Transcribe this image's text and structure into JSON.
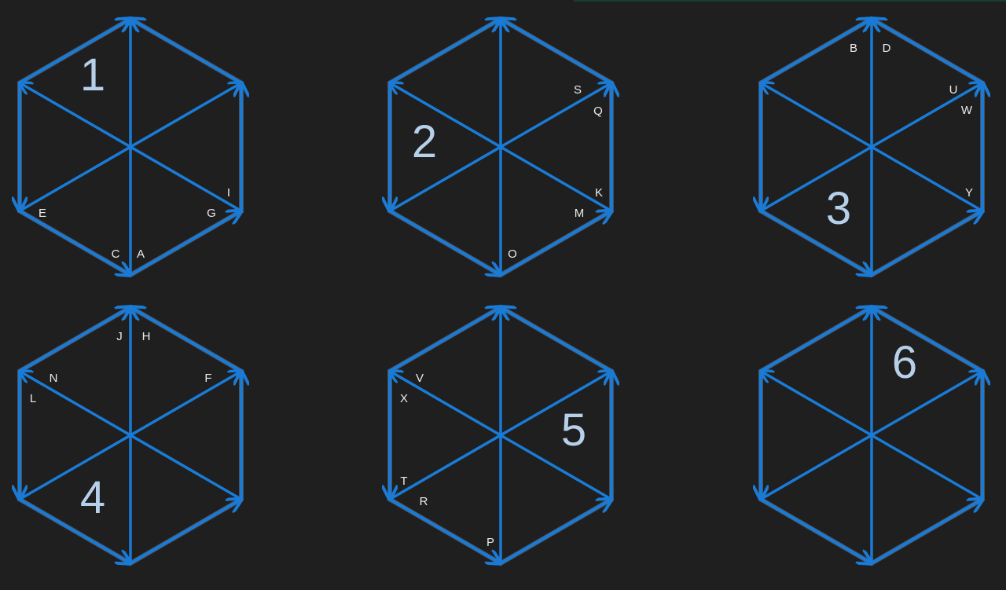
{
  "colors": {
    "background": "#1f1f1f",
    "arrow": "#1a7bd6",
    "outline": "#4a4f5a",
    "number": "#b7d0ea",
    "label": "#eaeaea"
  },
  "hexagons": [
    {
      "number": "1",
      "letters": [
        "I",
        "E",
        "G",
        "C",
        "A"
      ]
    },
    {
      "number": "2",
      "letters": [
        "S",
        "Q",
        "K",
        "M",
        "O"
      ]
    },
    {
      "number": "3",
      "letters": [
        "B",
        "D",
        "U",
        "W",
        "Y"
      ]
    },
    {
      "number": "4",
      "letters": [
        "J",
        "H",
        "N",
        "F",
        "L"
      ]
    },
    {
      "number": "5",
      "letters": [
        "V",
        "X",
        "T",
        "R",
        "P"
      ]
    },
    {
      "number": "6",
      "letters": []
    }
  ]
}
